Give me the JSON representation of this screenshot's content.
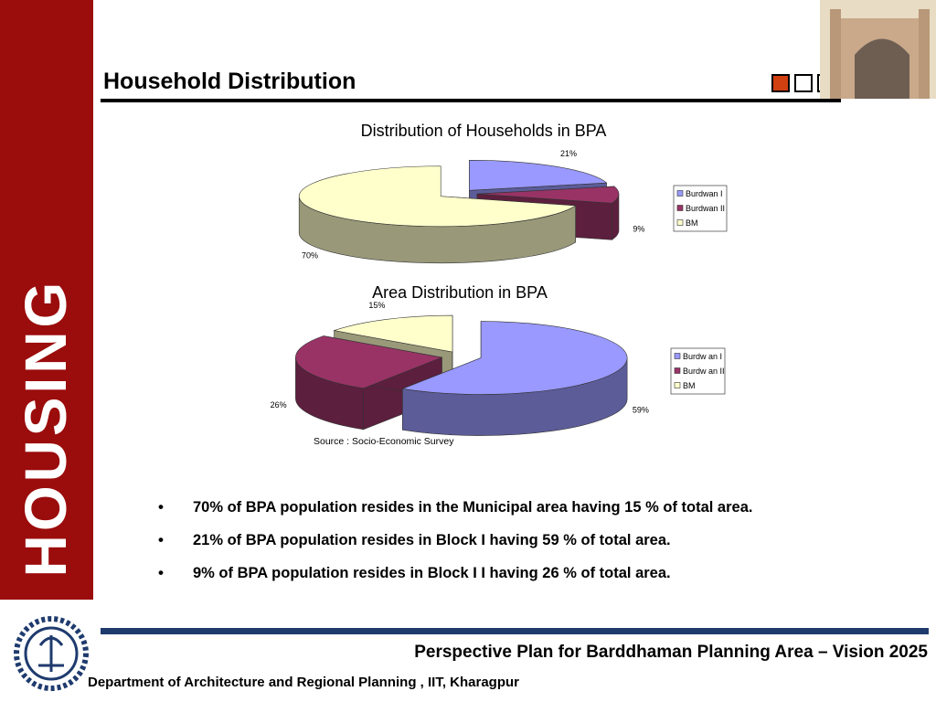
{
  "slide": {
    "side_title": "HOUSING",
    "title": "Household Distribution",
    "source": "Source : Socio-Economic Survey",
    "bullets": [
      "70% of BPA population resides in the Municipal area having 15 % of  total area.",
      "21% of BPA population resides in Block I having 59 % of  total area.",
      "9% of BPA population resides in Block I I having 26 % of  total area."
    ],
    "bullet_symbol": "•",
    "footer_title": "Perspective Plan for Barddhaman Planning Area – Vision 2025",
    "footer_dept": "Department of Architecture and Regional Planning , IIT, Kharagpur"
  },
  "chart_data": [
    {
      "type": "pie",
      "title": "Distribution of Households in BPA",
      "categories": [
        "Burdwan I",
        "Burdwan II",
        "BM"
      ],
      "values": [
        21,
        9,
        70
      ],
      "value_labels": [
        "21%",
        "9%",
        "70%"
      ],
      "colors": [
        "#9999ff",
        "#993366",
        "#ffffcc"
      ],
      "legend": "right"
    },
    {
      "type": "pie",
      "title": "Area Distribution in BPA",
      "categories": [
        "Burdw an I",
        "Burdw an II",
        "BM"
      ],
      "values": [
        59,
        26,
        15
      ],
      "value_labels": [
        "59%",
        "26%",
        "15%"
      ],
      "colors": [
        "#9999ff",
        "#993366",
        "#ffffcc"
      ],
      "legend": "right"
    }
  ]
}
